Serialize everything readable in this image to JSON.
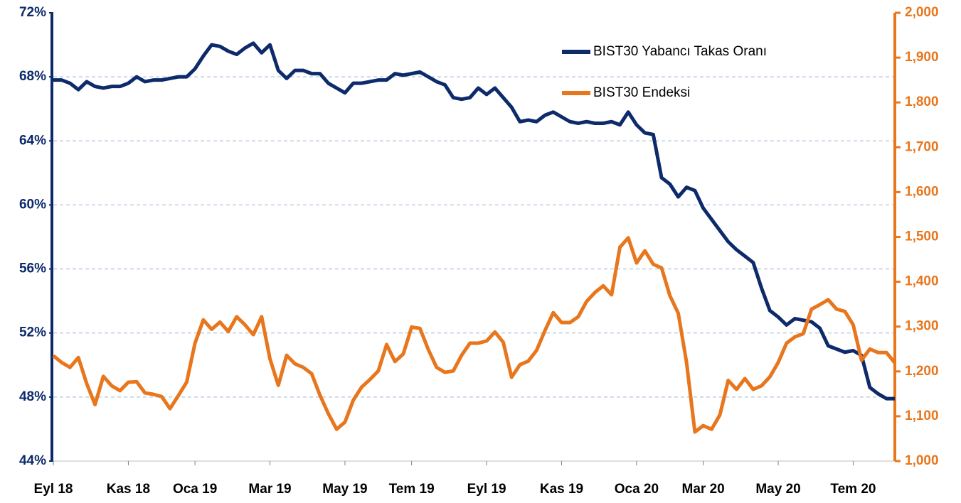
{
  "chart_data": {
    "type": "line",
    "categories": [
      "Eyl 18",
      null,
      null,
      null,
      null,
      null,
      null,
      null,
      null,
      "Kas 18",
      null,
      null,
      null,
      null,
      null,
      null,
      null,
      "Oca 19",
      null,
      null,
      null,
      null,
      null,
      null,
      null,
      null,
      "Mar 19",
      null,
      null,
      null,
      null,
      null,
      null,
      null,
      null,
      "May 19",
      null,
      null,
      null,
      null,
      null,
      null,
      null,
      "Tem 19",
      null,
      null,
      null,
      null,
      null,
      null,
      null,
      null,
      "Eyl 19",
      null,
      null,
      null,
      null,
      null,
      null,
      null,
      null,
      "Kas 19",
      null,
      null,
      null,
      null,
      null,
      null,
      null,
      null,
      "Oca 20",
      null,
      null,
      null,
      null,
      null,
      null,
      null,
      "Mar 20",
      null,
      null,
      null,
      null,
      null,
      null,
      null,
      null,
      "May 20",
      null,
      null,
      null,
      null,
      null,
      null,
      null,
      null,
      "Tem 20",
      null,
      null,
      null,
      null,
      null
    ],
    "series": [
      {
        "name": "BIST30 Yabancı Takas Oranı",
        "color": "#0d2a6b",
        "axis": "y",
        "values": [
          67.8,
          67.8,
          67.6,
          67.2,
          67.7,
          67.4,
          67.3,
          67.4,
          67.4,
          67.6,
          68.0,
          67.7,
          67.8,
          67.8,
          67.9,
          68.0,
          68.0,
          68.5,
          69.3,
          70.0,
          69.9,
          69.6,
          69.4,
          69.8,
          70.1,
          69.5,
          70.0,
          68.4,
          67.9,
          68.4,
          68.4,
          68.2,
          68.2,
          67.6,
          67.3,
          67.0,
          67.6,
          67.6,
          67.7,
          67.8,
          67.8,
          68.2,
          68.1,
          68.2,
          68.3,
          68.0,
          67.7,
          67.5,
          66.7,
          66.6,
          66.7,
          67.3,
          66.9,
          67.3,
          66.7,
          66.1,
          65.2,
          65.3,
          65.2,
          65.6,
          65.8,
          65.5,
          65.2,
          65.1,
          65.2,
          65.1,
          65.1,
          65.2,
          65.0,
          65.8,
          65.0,
          64.5,
          64.4,
          61.7,
          61.3,
          60.5,
          61.1,
          60.9,
          59.8,
          59.1,
          58.4,
          57.7,
          57.2,
          56.8,
          56.4,
          54.8,
          53.4,
          53.0,
          52.5,
          52.9,
          52.8,
          52.7,
          52.3,
          51.2,
          51.0,
          50.8,
          50.9,
          50.6,
          48.6,
          48.2,
          47.9,
          47.9
        ]
      },
      {
        "name": "BIST30 Endeksi",
        "color": "#e8761d",
        "axis": "y2",
        "values": [
          1235,
          1220,
          1209,
          1231,
          1173,
          1126,
          1189,
          1168,
          1157,
          1176,
          1177,
          1152,
          1149,
          1144,
          1117,
          1146,
          1176,
          1263,
          1315,
          1294,
          1310,
          1289,
          1322,
          1304,
          1282,
          1322,
          1228,
          1169,
          1236,
          1217,
          1209,
          1195,
          1147,
          1106,
          1071,
          1087,
          1136,
          1165,
          1182,
          1201,
          1260,
          1222,
          1239,
          1299,
          1296,
          1249,
          1209,
          1198,
          1201,
          1236,
          1263,
          1263,
          1268,
          1288,
          1265,
          1187,
          1215,
          1223,
          1247,
          1291,
          1331,
          1309,
          1309,
          1322,
          1356,
          1376,
          1391,
          1371,
          1477,
          1498,
          1442,
          1469,
          1439,
          1431,
          1369,
          1330,
          1220,
          1065,
          1079,
          1071,
          1103,
          1180,
          1160,
          1184,
          1160,
          1168,
          1188,
          1220,
          1263,
          1277,
          1284,
          1339,
          1349,
          1360,
          1339,
          1334,
          1304,
          1225,
          1250,
          1242,
          1242,
          1219
        ]
      }
    ],
    "ylim": [
      44,
      72
    ],
    "yticks": [
      {
        "value": 44,
        "label": "44%"
      },
      {
        "value": 48,
        "label": "48%"
      },
      {
        "value": 52,
        "label": "52%"
      },
      {
        "value": 56,
        "label": "56%"
      },
      {
        "value": 60,
        "label": "60%"
      },
      {
        "value": 64,
        "label": "64%"
      },
      {
        "value": 68,
        "label": "68%"
      },
      {
        "value": 72,
        "label": "72%"
      }
    ],
    "y2lim": [
      1000,
      2000
    ],
    "y2ticks": [
      {
        "value": 1000,
        "label": "1,000"
      },
      {
        "value": 1100,
        "label": "1,100"
      },
      {
        "value": 1200,
        "label": "1,200"
      },
      {
        "value": 1300,
        "label": "1,300"
      },
      {
        "value": 1400,
        "label": "1,400"
      },
      {
        "value": 1500,
        "label": "1,500"
      },
      {
        "value": 1600,
        "label": "1,600"
      },
      {
        "value": 1700,
        "label": "1,700"
      },
      {
        "value": 1800,
        "label": "1,800"
      },
      {
        "value": 1900,
        "label": "1,900"
      },
      {
        "value": 2000,
        "label": "2,000"
      }
    ],
    "grid": true
  }
}
